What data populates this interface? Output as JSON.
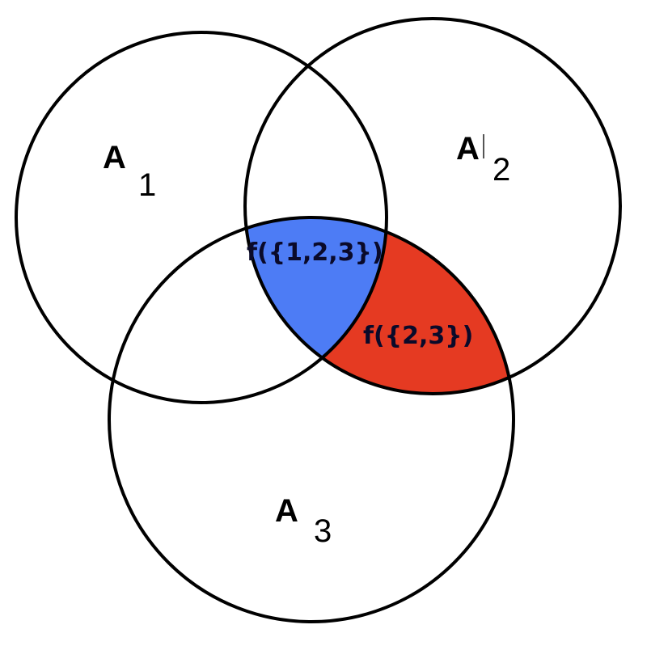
{
  "sets": [
    {
      "id": "a1",
      "letter": "A",
      "subscript": "1"
    },
    {
      "id": "a2",
      "letter": "A",
      "subscript": "2"
    },
    {
      "id": "a3",
      "letter": "A",
      "subscript": "3"
    }
  ],
  "regions": [
    {
      "id": "triple",
      "label": "f({1,2,3})",
      "color": "#4d7cf5"
    },
    {
      "id": "pair-23",
      "label": "f({2,3})",
      "color": "#e53a22"
    }
  ],
  "stroke_color": "#000000"
}
